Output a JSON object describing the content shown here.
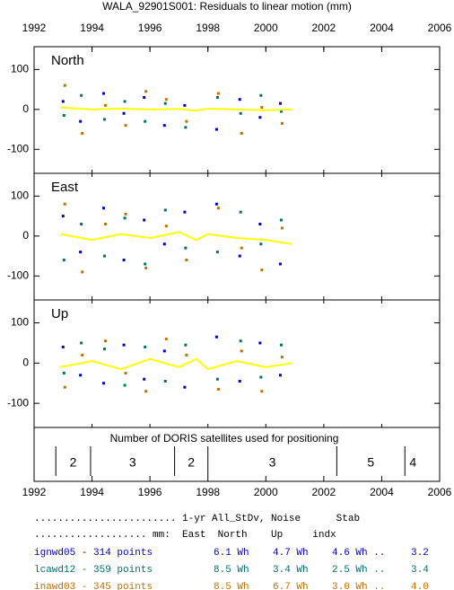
{
  "title": "WALA_92901S001: Residuals to linear motion (mm)",
  "x_axis": {
    "xlim": [
      1992,
      2006
    ],
    "xticks": [
      1992,
      1994,
      1996,
      1998,
      2000,
      2002,
      2004,
      2006
    ]
  },
  "chart_data": [
    {
      "type": "scatter",
      "title": "North",
      "ylim": [
        -160,
        157
      ],
      "yticks": [
        -100,
        0,
        100
      ],
      "x": [
        1993.0,
        1993.6,
        1994.4,
        1995.1,
        1995.8,
        1996.5,
        1997.2,
        1998.3,
        1999.1,
        1999.8,
        2000.5
      ],
      "series": [
        {
          "color": "#0000c0",
          "values": [
            20,
            -30,
            40,
            -10,
            30,
            -40,
            10,
            -50,
            25,
            -20,
            15
          ]
        },
        {
          "color": "#007070",
          "values": [
            -15,
            35,
            -25,
            20,
            -30,
            15,
            -45,
            30,
            -10,
            35,
            -5
          ]
        },
        {
          "color": "#c07000",
          "values": [
            60,
            -60,
            10,
            -40,
            45,
            25,
            -30,
            40,
            -60,
            5,
            -35
          ]
        }
      ],
      "trend": {
        "color": "#ffff00",
        "x": [
          1992.9,
          1994,
          1995,
          1996,
          1997,
          1997.6,
          1998,
          1999,
          2000,
          2000.9
        ],
        "values": [
          5,
          0,
          2,
          0,
          1,
          -3,
          2,
          0,
          -2,
          0
        ]
      }
    },
    {
      "type": "scatter",
      "title": "East",
      "ylim": [
        -160,
        157
      ],
      "yticks": [
        -100,
        0,
        100
      ],
      "x": [
        1993.0,
        1993.6,
        1994.4,
        1995.1,
        1995.8,
        1996.5,
        1997.2,
        1998.3,
        1999.1,
        1999.8,
        2000.5
      ],
      "series": [
        {
          "color": "#0000c0",
          "values": [
            50,
            -40,
            70,
            -60,
            40,
            -20,
            60,
            80,
            -50,
            30,
            -70
          ]
        },
        {
          "color": "#007070",
          "values": [
            -60,
            30,
            -50,
            45,
            -70,
            65,
            -30,
            -40,
            60,
            -20,
            40
          ]
        },
        {
          "color": "#c07000",
          "values": [
            80,
            -90,
            30,
            55,
            -80,
            25,
            -60,
            70,
            -30,
            -85,
            20
          ]
        }
      ],
      "trend": {
        "color": "#ffff00",
        "x": [
          1992.9,
          1994,
          1995,
          1996,
          1997,
          1997.6,
          1998,
          1999,
          2000,
          2000.9
        ],
        "values": [
          5,
          -10,
          5,
          -5,
          10,
          -10,
          5,
          -5,
          -10,
          -20
        ]
      }
    },
    {
      "type": "scatter",
      "title": "Up",
      "ylim": [
        -160,
        157
      ],
      "yticks": [
        -100,
        0,
        100
      ],
      "x": [
        1993.0,
        1993.6,
        1994.4,
        1995.1,
        1995.8,
        1996.5,
        1997.2,
        1998.3,
        1999.1,
        1999.8,
        2000.5
      ],
      "series": [
        {
          "color": "#0000c0",
          "values": [
            40,
            -30,
            -50,
            45,
            -40,
            30,
            -60,
            65,
            -45,
            50,
            -30
          ]
        },
        {
          "color": "#007070",
          "values": [
            -25,
            50,
            35,
            -55,
            40,
            -45,
            45,
            -40,
            55,
            -35,
            45
          ]
        },
        {
          "color": "#c07000",
          "values": [
            -60,
            20,
            55,
            -25,
            -70,
            60,
            20,
            -65,
            30,
            -70,
            15
          ]
        }
      ],
      "trend": {
        "color": "#ffff00",
        "x": [
          1992.9,
          1994,
          1995,
          1996,
          1997,
          1997.6,
          1998,
          1999,
          2000,
          2000.9
        ],
        "values": [
          -10,
          5,
          -15,
          10,
          -10,
          10,
          -15,
          5,
          -10,
          0
        ]
      }
    }
  ],
  "satellites": {
    "title": "Number of DORIS satellites used for positioning",
    "bounds": [
      1992.75,
      1993.95,
      1996.85,
      1998,
      2002.45,
      2004.8
    ],
    "counts": [
      2,
      3,
      2,
      3,
      5,
      4
    ]
  },
  "table": {
    "header": [
      "........................ 1-yr All_StDv, Noise      Stab",
      "................... mm:  East  North    Up     indx"
    ],
    "rows": [
      {
        "color": "#0000c0",
        "cells": [
          "ignwd05 - 314 points",
          "6.1 Wh",
          "4.7 Wh",
          "4.6 Wh ..",
          "3.2"
        ]
      },
      {
        "color": "#007070",
        "cells": [
          "lcawd12 - 359 points",
          "8.5 Wh",
          "3.4 Wh",
          "2.5 Wh ..",
          "3.4"
        ]
      },
      {
        "color": "#c07000",
        "cells": [
          "inawd03 - 345 points",
          "8.5 Wh",
          "6.7 Wh",
          "3.0 Wh ..",
          "4.0"
        ]
      }
    ]
  }
}
